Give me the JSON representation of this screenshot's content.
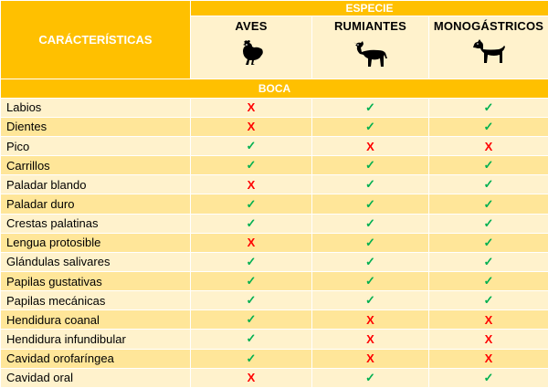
{
  "header": {
    "characteristics_label": "CARÁCTERÍSTICAS",
    "species_group_label": "ESPECIE",
    "species": [
      {
        "name": "AVES",
        "icon": "chicken-icon"
      },
      {
        "name": "RUMIANTES",
        "icon": "cow-icon"
      },
      {
        "name": "MONOGÁSTRICOS",
        "icon": "dog-icon"
      }
    ]
  },
  "section_label": "BOCA",
  "symbols": {
    "yes": "✓",
    "no": "X"
  },
  "colors": {
    "header_orange": "#ffc000",
    "row_light": "#fff2cc",
    "row_dark": "#ffe699",
    "check_green": "#00b050",
    "cross_red": "#ff0000"
  },
  "rows": [
    {
      "label": "Labios",
      "aves": "no",
      "rumiantes": "yes",
      "monogastricos": "yes"
    },
    {
      "label": "Dientes",
      "aves": "no",
      "rumiantes": "yes",
      "monogastricos": "yes"
    },
    {
      "label": "Pico",
      "aves": "yes",
      "rumiantes": "no",
      "monogastricos": "no"
    },
    {
      "label": "Carrillos",
      "aves": "yes",
      "rumiantes": "yes",
      "monogastricos": "yes"
    },
    {
      "label": "Paladar blando",
      "aves": "no",
      "rumiantes": "yes",
      "monogastricos": "yes"
    },
    {
      "label": "Paladar duro",
      "aves": "yes",
      "rumiantes": "yes",
      "monogastricos": "yes"
    },
    {
      "label": "Crestas palatinas",
      "aves": "yes",
      "rumiantes": "yes",
      "monogastricos": "yes"
    },
    {
      "label": "Lengua protosible",
      "aves": "no",
      "rumiantes": "yes",
      "monogastricos": "yes"
    },
    {
      "label": "Glándulas salivares",
      "aves": "yes",
      "rumiantes": "yes",
      "monogastricos": "yes"
    },
    {
      "label": "Papilas gustativas",
      "aves": "yes",
      "rumiantes": "yes",
      "monogastricos": "yes"
    },
    {
      "label": "Papilas mecánicas",
      "aves": "yes",
      "rumiantes": "yes",
      "monogastricos": "yes"
    },
    {
      "label": "Hendidura coanal",
      "aves": "yes",
      "rumiantes": "no",
      "monogastricos": "no"
    },
    {
      "label": "Hendidura infundibular",
      "aves": "yes",
      "rumiantes": "no",
      "monogastricos": "no"
    },
    {
      "label": "Cavidad orofaríngea",
      "aves": "yes",
      "rumiantes": "no",
      "monogastricos": "no"
    },
    {
      "label": "Cavidad oral",
      "aves": "no",
      "rumiantes": "yes",
      "monogastricos": "yes"
    }
  ]
}
